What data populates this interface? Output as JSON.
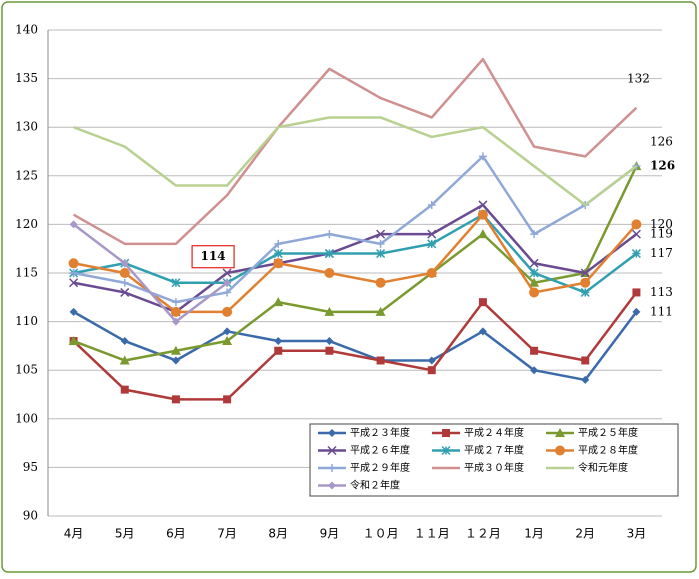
{
  "chart_data": {
    "type": "line",
    "categories": [
      "4月",
      "5月",
      "6月",
      "7月",
      "8月",
      "9月",
      "１０月",
      "１１月",
      "１２月",
      "1月",
      "2月",
      "3月"
    ],
    "ylim": [
      90,
      140
    ],
    "yticks": [
      90,
      95,
      100,
      105,
      110,
      115,
      120,
      125,
      130,
      135,
      140
    ],
    "grid": true,
    "series": [
      {
        "name": "平成２３年度",
        "color": "#3a6aaa",
        "marker": "diamond",
        "labeled": 11,
        "values": [
          111,
          108,
          106,
          109,
          108,
          108,
          106,
          106,
          109,
          105,
          104,
          111
        ]
      },
      {
        "name": "平成２４年度",
        "color": "#b03a3a",
        "marker": "square",
        "labeled": 11,
        "values": [
          108,
          103,
          102,
          102,
          107,
          107,
          106,
          105,
          112,
          107,
          106,
          113
        ]
      },
      {
        "name": "平成２５年度",
        "color": "#7a9a30",
        "marker": "triangle",
        "labeled": 11,
        "values": [
          108,
          106,
          107,
          108,
          112,
          111,
          111,
          115,
          119,
          114,
          115,
          126
        ]
      },
      {
        "name": "平成２６年度",
        "color": "#6a4a90",
        "marker": "x",
        "labeled": 11,
        "values": [
          114,
          113,
          111,
          115,
          116,
          117,
          119,
          119,
          122,
          116,
          115,
          119
        ]
      },
      {
        "name": "平成２７年度",
        "color": "#30a0b0",
        "marker": "star",
        "labeled": 11,
        "values": [
          115,
          116,
          114,
          114,
          117,
          117,
          117,
          118,
          121,
          115,
          113,
          117
        ]
      },
      {
        "name": "平成２８年度",
        "color": "#e08030",
        "marker": "circle",
        "labeled": 11,
        "values": [
          116,
          115,
          111,
          111,
          116,
          115,
          114,
          115,
          121,
          113,
          114,
          120
        ]
      },
      {
        "name": "平成２９年度",
        "color": "#90a8d8",
        "marker": "plus",
        "values": [
          115,
          114,
          112,
          113,
          118,
          119,
          118,
          122,
          127,
          119,
          122,
          126
        ]
      },
      {
        "name": "平成３０年度",
        "color": "#d09090",
        "marker": "none",
        "labeled": 11,
        "values": [
          121,
          118,
          118,
          123,
          130,
          136,
          133,
          131,
          137,
          128,
          127,
          132
        ]
      },
      {
        "name": "令和元年度",
        "color": "#b8d090",
        "marker": "none",
        "labeled": 11,
        "values": [
          130,
          128,
          124,
          124,
          130,
          131,
          131,
          129,
          130,
          126,
          122,
          126
        ]
      },
      {
        "name": "令和２年度",
        "color": "#a898c8",
        "marker": "diamond",
        "labeled": 3,
        "values": [
          120,
          116,
          110,
          114,
          null,
          null,
          null,
          null,
          null,
          null,
          null,
          null
        ]
      }
    ]
  }
}
